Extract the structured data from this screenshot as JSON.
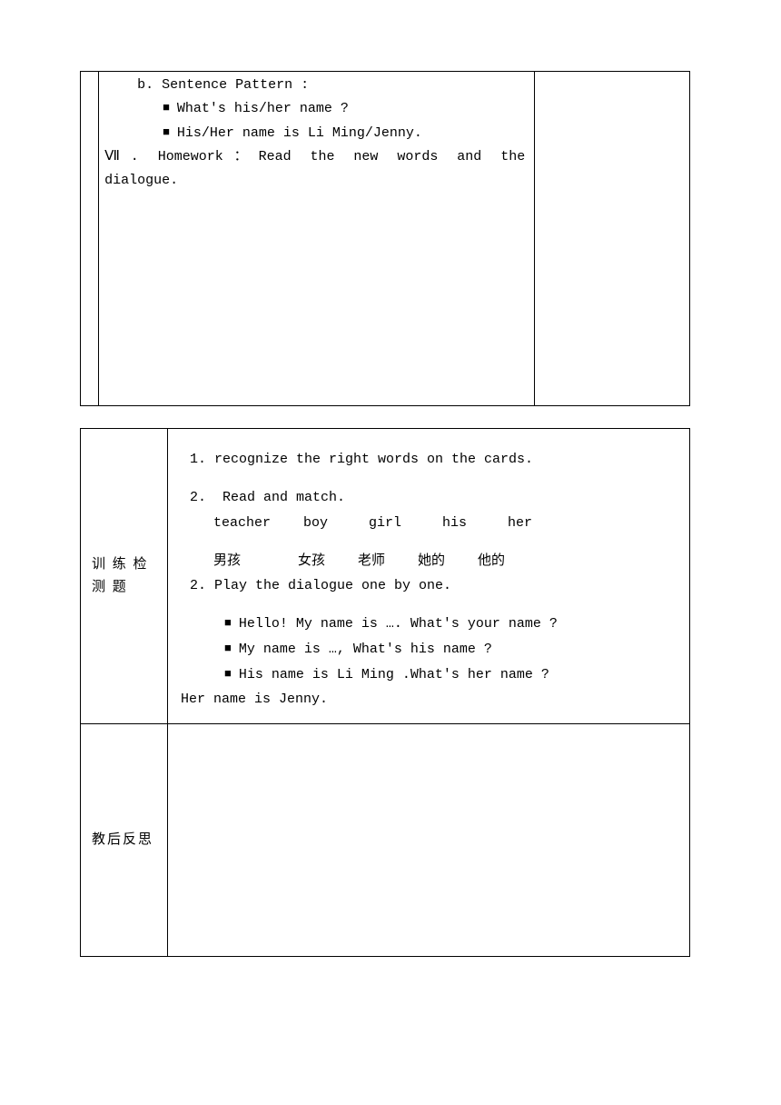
{
  "upper": {
    "l1": "b. Sentence Pattern :",
    "l2": "What's his/her name ?",
    "l3": "His/Her name is Li Ming/Jenny.",
    "l4a": "Ⅶ. Homework：Read the new words and the",
    "l4b": "dialogue."
  },
  "lower": {
    "row1Label": "训 练 检测 题",
    "row2Label": "教后反思",
    "c1": "1. recognize the right words on the cards.",
    "c2": "2.  Read and match.",
    "c3": "teacher    boy     girl     his     her",
    "c4": "男孩       女孩    老师    她的    他的",
    "c5": "2. Play the dialogue one by one.",
    "b1": "Hello! My name is …. What's your name ?",
    "b2": "My name is …, What's his name ?",
    "b3": "His name is Li Ming .What's her name ?",
    "c6": "Her name is Jenny."
  }
}
